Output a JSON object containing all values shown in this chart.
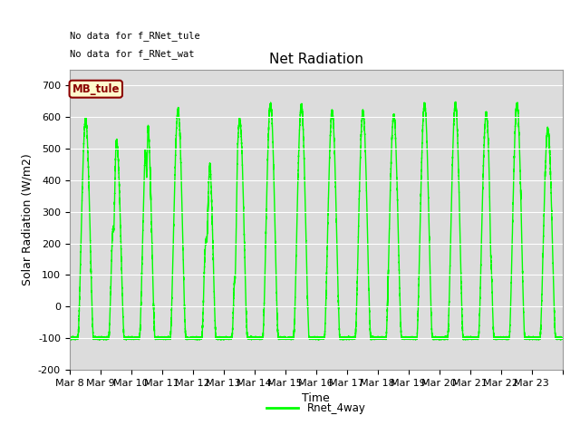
{
  "title": "Net Radiation",
  "xlabel": "Time",
  "ylabel": "Solar Radiation (W/m2)",
  "ylim": [
    -200,
    750
  ],
  "yticks": [
    -200,
    -100,
    0,
    100,
    200,
    300,
    400,
    500,
    600,
    700
  ],
  "line_color": "#00FF00",
  "line_width": 1.0,
  "background_color": "#ffffff",
  "plot_bg_color": "#dcdcdc",
  "legend_label": "Rnet_4way",
  "legend_line_color": "#00FF00",
  "annotation1": "No data for f_RNet_tule",
  "annotation2": "No data for f_RNet_wat",
  "box_label": "MB_tule",
  "box_text_color": "#8B0000",
  "box_bg_color": "#FFFACD",
  "box_border_color": "#8B0000",
  "num_days": 16,
  "day_labels": [
    "Mar 8",
    "Mar 9",
    "Mar 10",
    "Mar 11",
    "Mar 12",
    "Mar 13",
    "Mar 14",
    "Mar 15",
    "Mar 16",
    "Mar 17",
    "Mar 18",
    "Mar 19",
    "Mar 20",
    "Mar 21",
    "Mar 22",
    "Mar 23"
  ],
  "title_fontsize": 11,
  "axis_fontsize": 9,
  "tick_fontsize": 8
}
